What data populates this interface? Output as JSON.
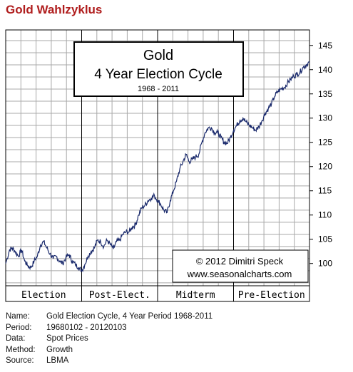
{
  "page": {
    "title": "Gold Wahlzyklus"
  },
  "chart_data": {
    "type": "line",
    "title_box": {
      "line1": "Gold",
      "line2": "4 Year Election Cycle",
      "line3": "1968 - 2011"
    },
    "copyright": {
      "line1": "© 2012  Dimitri Speck",
      "line2": "www.seasonalcharts.com"
    },
    "phases": [
      "Election",
      "Post-Elect.",
      "Midterm",
      "Pre-Election"
    ],
    "y_ticks": [
      "145",
      "140",
      "135",
      "130",
      "125",
      "120",
      "115",
      "110",
      "105",
      "100"
    ],
    "ylim": [
      95.4,
      148.2
    ],
    "xlim": [
      0,
      48
    ],
    "grid": true,
    "series": [
      {
        "x": [
          0,
          0.6,
          1,
          1.5,
          2,
          2.5,
          3,
          3.5,
          4,
          4.5,
          5,
          5.5,
          6,
          6.5,
          7,
          7.5,
          8,
          8.5,
          9,
          9.5,
          10,
          10.5,
          11,
          11.5,
          12,
          12.5,
          13,
          13.5,
          14,
          14.5,
          15,
          15.5,
          16,
          16.5,
          17,
          17.5,
          18,
          18.5,
          19,
          19.5,
          20,
          20.5,
          21,
          21.5,
          22,
          22.5,
          23,
          23.5,
          24,
          24.5,
          25,
          25.5,
          26,
          26.5,
          27,
          27.5,
          28,
          28.5,
          29,
          29.5,
          30,
          30.5,
          31,
          31.5,
          32,
          32.5,
          33,
          33.5,
          34,
          34.5,
          35,
          35.5,
          36,
          36.5,
          37,
          37.5,
          38,
          38.5,
          39,
          39.5,
          40,
          40.5,
          41,
          41.5,
          42,
          42.5,
          43,
          43.5,
          44,
          44.5,
          45,
          45.5,
          46,
          46.5,
          47,
          47.5,
          48
        ],
        "values": [
          100,
          102.8,
          103.2,
          102.5,
          101.5,
          102.8,
          100.5,
          99.5,
          99.2,
          100.5,
          101.5,
          103.8,
          104.5,
          103.2,
          102,
          101,
          101.5,
          100.5,
          100,
          101.2,
          101.8,
          100.5,
          99.8,
          99.2,
          98.5,
          99.8,
          101.5,
          102.5,
          103.2,
          104.8,
          104.5,
          103.5,
          104.8,
          104,
          103,
          104.5,
          104.8,
          106,
          106.5,
          106.5,
          107.5,
          108,
          110,
          111.5,
          112,
          113,
          113.5,
          114,
          113,
          112.2,
          111,
          110.5,
          113,
          115,
          117,
          119.5,
          121,
          122.5,
          121,
          121.5,
          122,
          122.5,
          125,
          127,
          128,
          128,
          127,
          127,
          126,
          125,
          124.8,
          126,
          127.5,
          128.5,
          129.5,
          130,
          129.2,
          128.5,
          128,
          127.5,
          128.2,
          129.5,
          131,
          132,
          133,
          134.5,
          135.5,
          136,
          136.3,
          137.2,
          138,
          138.7,
          139,
          139.5,
          140.5,
          141,
          141.5
        ]
      }
    ],
    "line_color": "#1a2a6c",
    "grid_color": "#a8a8a8"
  },
  "meta": [
    {
      "key": "Name:",
      "value": "Gold Election Cycle, 4 Year Period 1968-2011"
    },
    {
      "key": "Period:",
      "value": "19680102 - 20120103"
    },
    {
      "key": "Data:",
      "value": "Spot Prices"
    },
    {
      "key": "Method:",
      "value": "Growth"
    },
    {
      "key": "Source:",
      "value": "LBMA"
    }
  ]
}
